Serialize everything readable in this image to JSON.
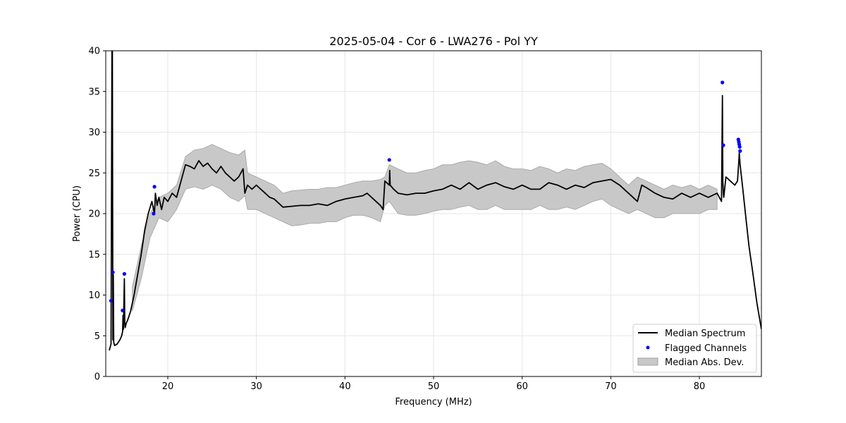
{
  "chart_data": {
    "type": "line",
    "title": "2025-05-04 - Cor 6 - LWA276 - Pol YY",
    "xlabel": "Frequency (MHz)",
    "ylabel": "Power (CPU)",
    "xlim": [
      13,
      87
    ],
    "ylim": [
      0,
      40
    ],
    "xticks": [
      20,
      30,
      40,
      50,
      60,
      70,
      80
    ],
    "yticks": [
      0,
      5,
      10,
      15,
      20,
      25,
      30,
      35,
      40
    ],
    "grid": true,
    "legend_position": "lower-right",
    "colors": {
      "median": "#000000",
      "flagged": "#0000ff",
      "mad_fill": "#c8c8c8",
      "mad_edge": "#a0a0a0"
    },
    "series": [
      {
        "name": "Median Spectrum",
        "kind": "line",
        "x": [
          13.4,
          13.6,
          13.7,
          13.75,
          13.8,
          13.85,
          13.9,
          14.0,
          14.3,
          14.6,
          14.8,
          14.9,
          14.95,
          15.0,
          15.1,
          15.15,
          15.2,
          15.3,
          15.5,
          15.8,
          16.2,
          16.6,
          17.0,
          17.4,
          17.8,
          18.2,
          18.5,
          18.6,
          18.8,
          19.0,
          19.3,
          19.6,
          20.0,
          20.5,
          21.0,
          21.5,
          22.0,
          22.5,
          23.0,
          23.5,
          24.0,
          24.5,
          25.0,
          25.5,
          26.0,
          26.5,
          27.0,
          27.5,
          28.0,
          28.5,
          28.7,
          29.0,
          29.5,
          30.0,
          30.5,
          31.0,
          31.5,
          32.0,
          32.5,
          33.0,
          34.0,
          35.0,
          36.0,
          37.0,
          38.0,
          39.0,
          40.0,
          41.0,
          42.0,
          42.5,
          43.0,
          43.5,
          44.0,
          44.3,
          44.5,
          45.0,
          45.05,
          45.1,
          45.5,
          46.0,
          47.0,
          48.0,
          49.0,
          50.0,
          51.0,
          52.0,
          53.0,
          54.0,
          55.0,
          56.0,
          57.0,
          58.0,
          59.0,
          60.0,
          61.0,
          62.0,
          63.0,
          64.0,
          65.0,
          66.0,
          67.0,
          68.0,
          69.0,
          70.0,
          71.0,
          72.0,
          73.0,
          73.5,
          74.0,
          75.0,
          76.0,
          77.0,
          78.0,
          79.0,
          80.0,
          81.0,
          82.0,
          82.5,
          82.6,
          82.65,
          82.7,
          82.75,
          83.0,
          83.5,
          84.0,
          84.3,
          84.45,
          84.5,
          84.6,
          84.8,
          85.0,
          85.3,
          85.6,
          86.0,
          86.5,
          87.0
        ],
        "values": [
          3.2,
          4.0,
          40.0,
          40.0,
          4.5,
          12.5,
          4.2,
          3.8,
          4.0,
          4.5,
          5.0,
          5.5,
          7.5,
          5.8,
          12.0,
          6.5,
          6.0,
          6.5,
          7.0,
          8.0,
          10.0,
          12.5,
          15.0,
          18.0,
          20.0,
          21.5,
          20.0,
          22.5,
          21.0,
          22.0,
          20.5,
          22.0,
          21.5,
          22.5,
          22.0,
          24.0,
          26.0,
          25.8,
          25.5,
          26.5,
          25.8,
          26.2,
          25.5,
          25.0,
          25.8,
          25.0,
          24.5,
          24.0,
          24.5,
          25.5,
          22.5,
          23.5,
          23.0,
          23.5,
          23.0,
          22.5,
          22.0,
          21.8,
          21.3,
          20.8,
          20.9,
          21.0,
          21.0,
          21.2,
          21.0,
          21.5,
          21.8,
          22.0,
          22.2,
          22.5,
          22.0,
          21.5,
          21.0,
          20.5,
          24.0,
          23.5,
          25.3,
          23.5,
          23.0,
          22.5,
          22.3,
          22.5,
          22.5,
          22.8,
          23.0,
          23.5,
          23.0,
          23.8,
          23.0,
          23.5,
          23.8,
          23.3,
          23.0,
          23.5,
          23.0,
          23.0,
          23.8,
          23.5,
          23.0,
          23.5,
          23.2,
          23.8,
          24.0,
          24.2,
          23.5,
          22.5,
          21.5,
          23.5,
          23.2,
          22.5,
          22.0,
          21.8,
          22.5,
          22.0,
          22.5,
          22.0,
          22.5,
          21.5,
          34.5,
          24.0,
          22.5,
          22.0,
          24.5,
          24.0,
          23.5,
          24.0,
          26.5,
          27.5,
          26.0,
          24.0,
          22.0,
          19.0,
          16.0,
          13.0,
          9.0,
          5.8
        ]
      },
      {
        "name": "Flagged Channels",
        "kind": "scatter",
        "x": [
          13.6,
          13.8,
          14.9,
          15.1,
          18.4,
          18.5,
          45.0,
          82.6,
          82.7,
          84.4,
          84.45,
          84.5,
          84.55,
          84.6
        ],
        "values": [
          9.3,
          12.8,
          8.1,
          12.6,
          20.0,
          23.3,
          26.6,
          36.1,
          28.4,
          29.1,
          28.8,
          28.5,
          28.2,
          27.7
        ]
      },
      {
        "name": "Median Abs. Dev.",
        "kind": "band",
        "x": [
          16.0,
          17.0,
          18.0,
          19.0,
          20.0,
          21.0,
          22.0,
          23.0,
          24.0,
          25.0,
          26.0,
          27.0,
          28.0,
          28.7,
          29.0,
          30.0,
          31.0,
          32.0,
          33.0,
          34.0,
          35.0,
          36.0,
          37.0,
          38.0,
          39.0,
          40.0,
          41.0,
          42.0,
          43.0,
          44.0,
          44.5,
          45.0,
          46.0,
          47.0,
          48.0,
          49.0,
          50.0,
          51.0,
          52.0,
          53.0,
          54.0,
          55.0,
          56.0,
          57.0,
          58.0,
          59.0,
          60.0,
          61.0,
          62.0,
          63.0,
          64.0,
          65.0,
          66.0,
          67.0,
          68.0,
          69.0,
          70.0,
          71.0,
          72.0,
          73.0,
          74.0,
          75.0,
          76.0,
          77.0,
          78.0,
          79.0,
          80.0,
          81.0,
          82.0
        ],
        "upper": [
          11.0,
          16.0,
          20.0,
          22.0,
          22.5,
          23.5,
          27.0,
          27.8,
          28.0,
          28.5,
          28.0,
          27.5,
          27.2,
          27.8,
          25.0,
          24.5,
          24.0,
          23.5,
          22.5,
          22.8,
          22.9,
          23.0,
          23.0,
          23.2,
          23.2,
          23.5,
          23.8,
          24.0,
          24.0,
          24.2,
          24.5,
          26.0,
          25.5,
          25.0,
          25.0,
          25.3,
          25.5,
          26.0,
          26.0,
          26.3,
          26.5,
          26.3,
          26.0,
          26.5,
          25.8,
          25.5,
          25.5,
          25.3,
          25.8,
          25.5,
          25.0,
          25.5,
          25.3,
          25.8,
          26.0,
          26.2,
          25.5,
          24.5,
          23.5,
          24.5,
          24.0,
          23.5,
          23.0,
          23.5,
          23.2,
          23.5,
          23.0,
          23.5,
          23.0
        ],
        "lower": [
          8.0,
          12.0,
          17.0,
          19.5,
          19.0,
          20.5,
          23.0,
          23.3,
          23.0,
          23.5,
          23.0,
          22.0,
          21.5,
          22.2,
          20.5,
          20.5,
          20.0,
          19.5,
          19.0,
          18.5,
          18.6,
          18.8,
          18.8,
          19.0,
          19.0,
          19.5,
          19.8,
          19.8,
          19.5,
          19.0,
          21.0,
          21.5,
          20.0,
          19.8,
          19.8,
          20.0,
          20.3,
          20.5,
          20.5,
          20.8,
          21.0,
          20.5,
          20.5,
          21.0,
          20.5,
          20.5,
          20.5,
          20.5,
          21.0,
          20.5,
          20.5,
          20.8,
          20.5,
          21.0,
          21.5,
          21.8,
          21.0,
          20.5,
          20.0,
          20.5,
          20.0,
          19.5,
          19.5,
          20.0,
          20.0,
          20.0,
          20.0,
          20.5,
          20.5
        ]
      }
    ],
    "legend": [
      {
        "key": "median",
        "label": "Median Spectrum"
      },
      {
        "key": "flagged",
        "label": "Flagged Channels"
      },
      {
        "key": "mad",
        "label": "Median Abs. Dev."
      }
    ]
  }
}
